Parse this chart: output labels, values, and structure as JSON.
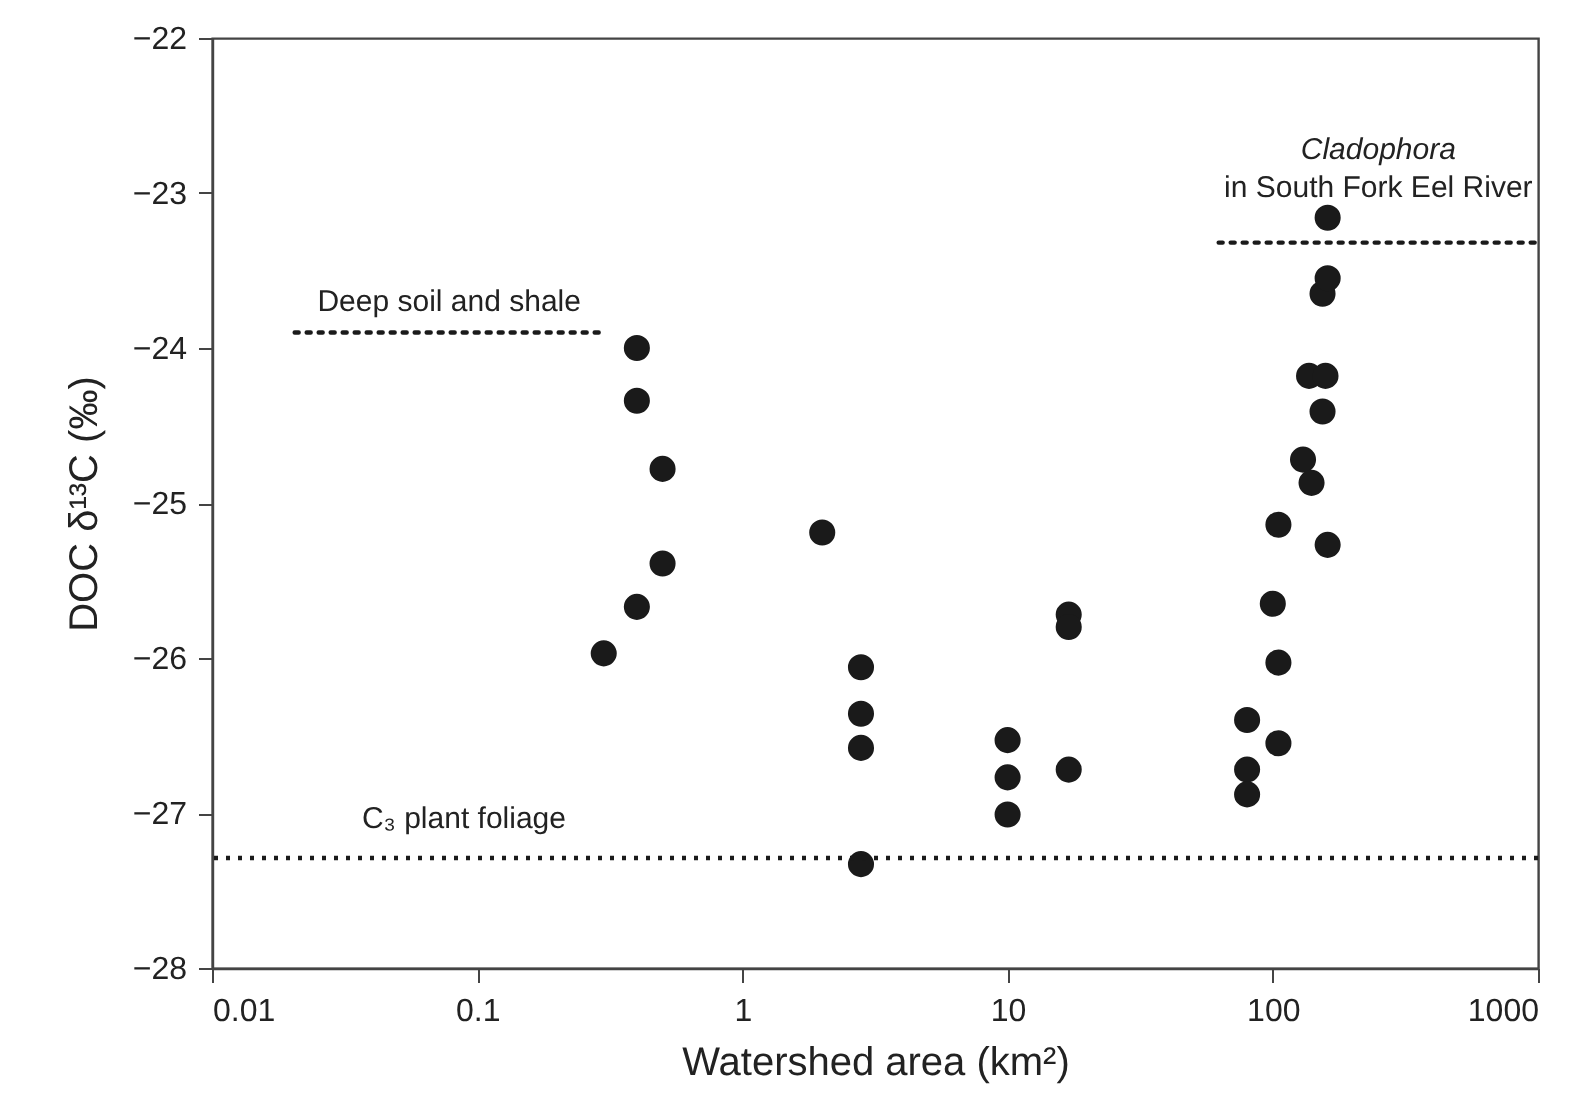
{
  "chart_data": {
    "type": "scatter",
    "xlabel": "Watershed area (km²)",
    "ylabel": "DOC δ¹³C (‰)",
    "log": "x",
    "xlim": [
      0.01,
      1000
    ],
    "xticks": [
      0.01,
      0.1,
      1,
      10,
      100,
      1000
    ],
    "ylim": [
      -28,
      -22
    ],
    "yticks": [
      -28,
      -27,
      -26,
      -25,
      -24,
      -23,
      -22
    ],
    "grid": false,
    "marker": "circle",
    "series": [
      {
        "color": "#1a1a1a",
        "x": [
          0.3,
          0.4,
          0.4,
          0.4,
          0.5,
          0.5,
          2.0,
          2.8,
          2.8,
          2.8,
          2.8,
          10,
          10,
          10,
          17,
          17,
          17,
          80,
          80,
          80,
          100,
          105,
          105,
          105,
          130,
          140,
          137,
          158,
          154,
          154,
          161,
          161,
          161
        ],
        "values": [
          -25.97,
          -24.0,
          -24.34,
          -25.67,
          -24.78,
          -25.39,
          -25.19,
          -26.06,
          -26.36,
          -26.58,
          -27.33,
          -26.53,
          -26.77,
          -27.01,
          -25.72,
          -25.8,
          -26.72,
          -26.4,
          -26.72,
          -26.88,
          -25.65,
          -25.14,
          -26.03,
          -26.55,
          -24.72,
          -24.87,
          -24.18,
          -24.18,
          -23.65,
          -24.41,
          -23.16,
          -23.55,
          -25.27
        ]
      },
      {
        "type": "line",
        "name": "Deep soil and shale",
        "color": "#1a1a1a",
        "line_style": "dotted",
        "marker": "none",
        "x": [
          0.0205,
          0.3
        ],
        "values": [
          -23.9,
          -23.9
        ]
      },
      {
        "type": "line",
        "name": "Cladophora in South Fork Eel River",
        "color": "#1a1a1a",
        "line_style": "dotted",
        "marker": "none",
        "x": [
          62.5,
          1000
        ],
        "values": [
          -23.32,
          -23.32
        ]
      }
    ],
    "ref_lines": [
      {
        "axis": "y",
        "value": -27.29,
        "label": "C₃ plant foliage",
        "color": "#1a1a1a",
        "line_style": "dotted"
      }
    ]
  }
}
